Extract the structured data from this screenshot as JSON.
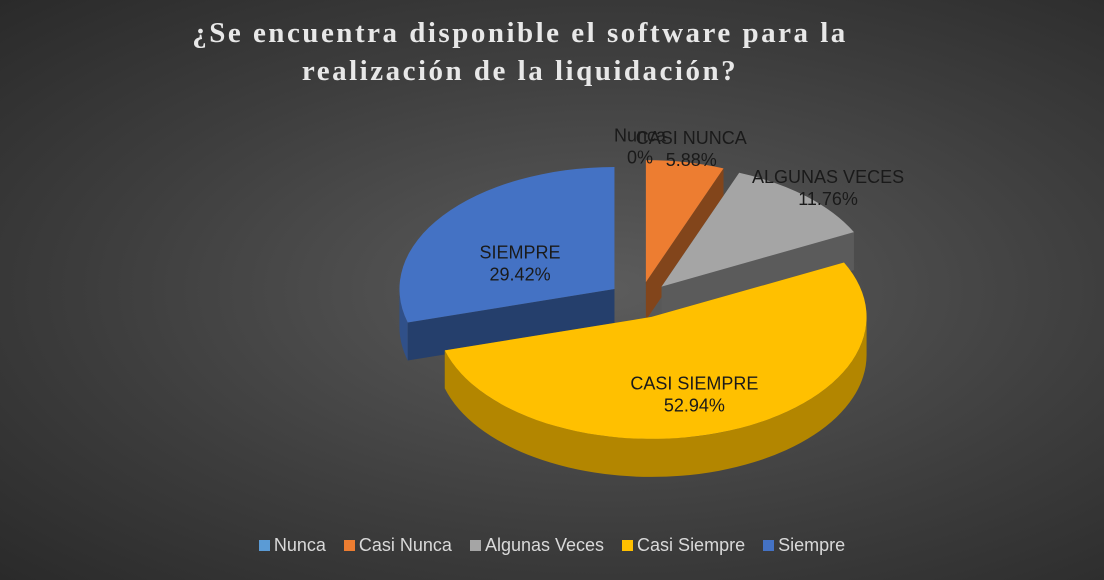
{
  "chart_data": {
    "type": "pie3d",
    "title": "¿Se encuentra disponible el software para la realización de la liquidación?",
    "categories": [
      "Nunca",
      "Casi Nunca",
      "Algunas Veces",
      "Casi Siempre",
      "Siempre"
    ],
    "label_names": [
      "Nunca",
      "CASI NUNCA",
      "ALGUNAS VECES",
      "CASI SIEMPRE",
      "SIEMPRE"
    ],
    "values": [
      0,
      5.88,
      11.76,
      52.94,
      29.42
    ],
    "value_labels": [
      "0%",
      "5.88%",
      "11.76%",
      "52.94%",
      "29.42%"
    ],
    "colors": [
      "#5b9bd5",
      "#ed7d31",
      "#a5a5a5",
      "#ffc000",
      "#4472c4"
    ],
    "legend": "bottom"
  }
}
